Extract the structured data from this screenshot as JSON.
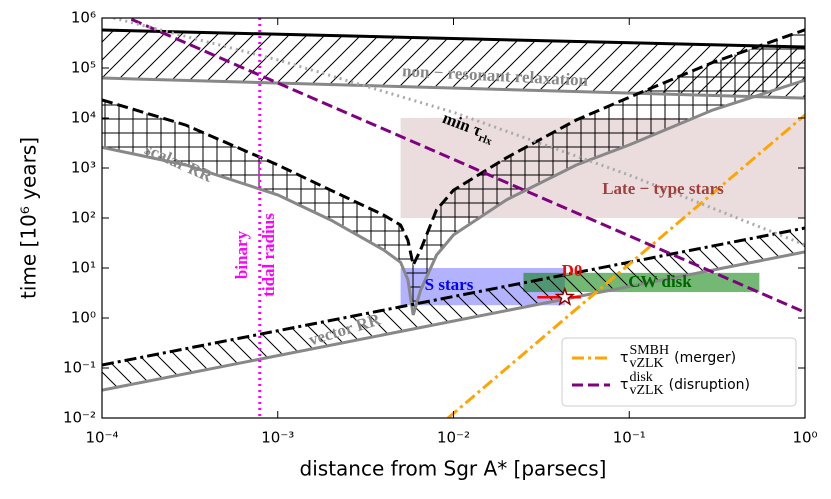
{
  "chart_data": {
    "type": "line",
    "x_label": "distance from Sgr A* [parsecs]",
    "y_label": "time [10⁶ years]",
    "xscale": "log",
    "yscale": "log",
    "xlim": [
      0.0001,
      1
    ],
    "ylim": [
      0.01,
      1000000
    ],
    "xticks": [
      {
        "value": 0.0001,
        "label": "10⁻⁴"
      },
      {
        "value": 0.001,
        "label": "10⁻³"
      },
      {
        "value": 0.01,
        "label": "10⁻²"
      },
      {
        "value": 0.1,
        "label": "10⁻¹"
      },
      {
        "value": 1,
        "label": "10⁰"
      }
    ],
    "yticks": [
      {
        "value": 0.01,
        "label": "10⁻²"
      },
      {
        "value": 0.1,
        "label": "10⁻¹"
      },
      {
        "value": 1,
        "label": "10⁰"
      },
      {
        "value": 10,
        "label": "10¹"
      },
      {
        "value": 100,
        "label": "10²"
      },
      {
        "value": 1000,
        "label": "10³"
      },
      {
        "value": 10000,
        "label": "10⁴"
      },
      {
        "value": 100000,
        "label": "10⁵"
      },
      {
        "value": 1000000,
        "label": "10⁶"
      }
    ],
    "legend": "lower right",
    "series": [
      {
        "name": "(merger)",
        "symbol": "τ",
        "symbol_sub": "vZLK",
        "symbol_sup": "SMBH",
        "color": "#ffa500",
        "dash": "dashdot",
        "x": [
          0.0093,
          1
        ],
        "values": [
          0.01,
          11500
        ]
      },
      {
        "name": "(disruption)",
        "symbol": "τ",
        "symbol_sub": "vZLK",
        "symbol_sup": "disk",
        "color": "#800080",
        "dash": "dashed",
        "x": [
          0.0001,
          1
        ],
        "values": [
          1700000,
          1.3
        ]
      },
      {
        "color": "#aaaaaa",
        "dash": "dotted",
        "x": [
          0.0001,
          0.001,
          0.01,
          0.1,
          1
        ],
        "values": [
          1150000,
          145000,
          13000,
          720,
          29
        ]
      }
    ],
    "bands": [
      {
        "hatch": "/",
        "x": [
          0.0001,
          1
        ],
        "upper": [
          575000,
          263000
        ],
        "lower": [
          63000,
          25000
        ],
        "upper_color": "#000000",
        "upper_dash": "solid",
        "lower_color": "#888888",
        "lower_dash": "solid"
      },
      {
        "hatch": "+",
        "x": [
          0.0001,
          0.0003,
          0.001,
          0.002,
          0.004,
          0.005,
          0.0055,
          0.0059,
          0.0065,
          0.008,
          0.01,
          0.02,
          0.05,
          0.1,
          0.3,
          1
        ],
        "upper": [
          23000,
          7200,
          1150,
          360,
          115,
          72,
          36,
          11.5,
          23,
          145,
          360,
          1600,
          9100,
          26000,
          130000,
          580000
        ],
        "lower": [
          2600,
          1150,
          290,
          91,
          23,
          13,
          5.8,
          1.15,
          3.6,
          18,
          46,
          230,
          1150,
          2900,
          14500,
          57000
        ],
        "upper_color": "#000000",
        "upper_dash": "dashed",
        "lower_color": "#888888",
        "lower_dash": "solid"
      },
      {
        "hatch": "\\",
        "x": [
          0.0001,
          1
        ],
        "upper": [
          0.115,
          63
        ],
        "lower": [
          0.036,
          21
        ],
        "upper_color": "#000000",
        "upper_dash": "dashdot",
        "lower_color": "#888888",
        "lower_dash": "solid"
      }
    ],
    "regions": [
      {
        "x": [
          0.005,
          1
        ],
        "y": [
          100,
          10000
        ],
        "color": "#bc8f8f",
        "opacity": 0.3
      },
      {
        "x": [
          0.005,
          0.043
        ],
        "y": [
          1.8,
          10
        ],
        "color": "#0000ff",
        "opacity": 0.3
      },
      {
        "x": [
          0.025,
          0.55
        ],
        "y": [
          3.3,
          8
        ],
        "color": "#008000",
        "opacity": 0.55
      }
    ],
    "vlines": [
      {
        "x": 0.00079,
        "color": "#ff00ff"
      }
    ],
    "points": [
      {
        "x": 0.043,
        "y": 2.6,
        "xmin": 0.03,
        "xmax": 0.053,
        "color": "#ff0000"
      }
    ],
    "annotations": [
      {
        "text": "non − resonant relaxation",
        "color": "#888888"
      },
      {
        "text": "min τ",
        "sub": "rlx",
        "color": "#000000"
      },
      {
        "text": "scalar RR",
        "color": "#888888"
      },
      {
        "text": "vector RR",
        "color": "#888888"
      },
      {
        "text": "Late − type stars",
        "color": "#a0403c"
      },
      {
        "text": "S stars",
        "color": "#0000ff"
      },
      {
        "text": "CW disk",
        "color": "#006400"
      },
      {
        "text": "D0",
        "color": "#ff0000"
      },
      {
        "text": "binary",
        "color": "#ff00ff"
      },
      {
        "text": "tidal radius",
        "color": "#ff00ff"
      }
    ]
  }
}
